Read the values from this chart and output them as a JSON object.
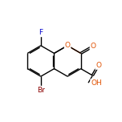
{
  "background_color": "#ffffff",
  "bond_color": "#000000",
  "atom_colors": {
    "O": "#e05000",
    "F": "#0000cc",
    "Br": "#8b0000",
    "C": "#000000"
  },
  "font_size": 6.5,
  "figsize": [
    1.52,
    1.52
  ],
  "dpi": 100,
  "xlim": [
    -0.1,
    1.3
  ],
  "ylim": [
    0.05,
    1.05
  ]
}
